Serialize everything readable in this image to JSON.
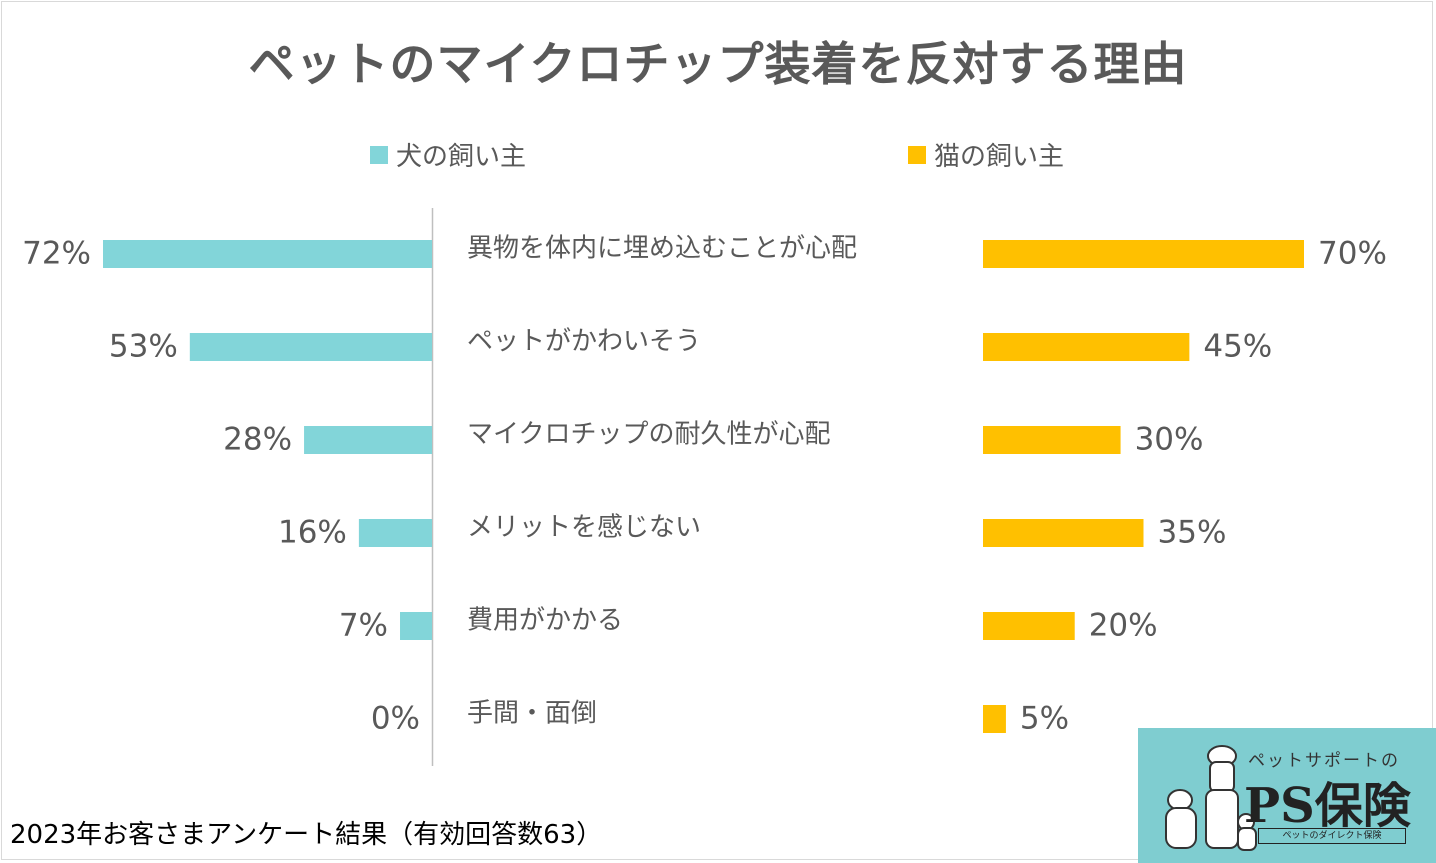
{
  "title": "ペットのマイクロチップ装着を反対する理由",
  "footer": "2023年お客さまアンケート結果（有効回答数63）",
  "logo": {
    "top_text": "ペットサポートの",
    "main_text": "PS保険",
    "sub_text": "ペットのダイレクト保険"
  },
  "colors": {
    "dog": "#82d5d9",
    "cat": "#ffc000",
    "axis": "#bfbfbf"
  },
  "chart_data": {
    "type": "bar",
    "orientation": "horizontal-butterfly",
    "categories": [
      "異物を体内に埋め込むことが心配",
      "ペットがかわいそう",
      "マイクロチップの耐久性が心配",
      "メリットを感じない",
      "費用がかかる",
      "手間・面倒"
    ],
    "series": [
      {
        "name": "犬の飼い主",
        "values": [
          72,
          53,
          28,
          16,
          7,
          0
        ],
        "labels": [
          "72%",
          "53%",
          "28%",
          "16%",
          "7%",
          "0%"
        ]
      },
      {
        "name": "猫の飼い主",
        "values": [
          70,
          45,
          30,
          35,
          20,
          5
        ],
        "labels": [
          "70%",
          "45%",
          "30%",
          "35%",
          "20%",
          "5%"
        ]
      }
    ],
    "unit": "%",
    "xlim": [
      0,
      100
    ],
    "legend": "top"
  }
}
